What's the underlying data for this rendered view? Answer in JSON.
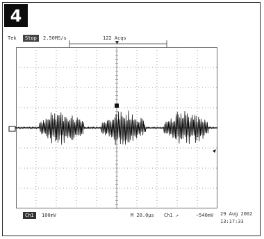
{
  "figure": {
    "number": "4"
  },
  "scope": {
    "status": "Tek",
    "state": "Stop",
    "sample_rate": "2.50MS/s",
    "acquisitions": "122 Acqs",
    "channel": "Ch1",
    "volts_per_div": "100mV",
    "timebase": "M 20.0μs",
    "trigger": "Ch1",
    "trigger_slope": "↗",
    "trigger_level": "−540mV",
    "date": "29 Aug 2002",
    "time": "13:17:33",
    "trace_color": "#000000",
    "grid_color": "#7a7a7a"
  }
}
